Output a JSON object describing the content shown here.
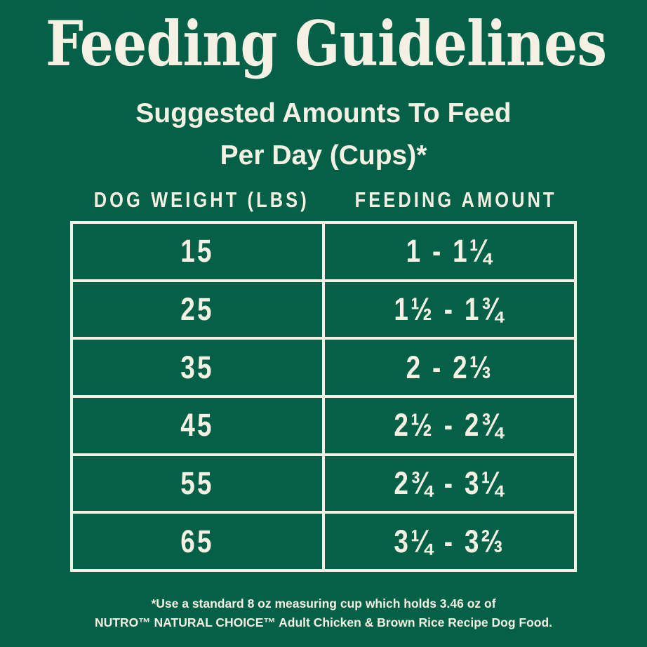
{
  "colors": {
    "background_green": "#046147",
    "text_cream": "#F4F0E3"
  },
  "page": {
    "title": "Feeding Guidelines",
    "subtitle_line1": "Suggested Amounts To Feed",
    "subtitle_line2": "Per Day (Cups)*"
  },
  "table": {
    "columns": [
      "DOG WEIGHT (LBS)",
      "FEEDING AMOUNT"
    ],
    "rows": [
      {
        "weight": "15",
        "amount": "1 - 1¼"
      },
      {
        "weight": "25",
        "amount": "1½ - 1¾"
      },
      {
        "weight": "35",
        "amount": "2 - 2⅓"
      },
      {
        "weight": "45",
        "amount": "2½ - 2¾"
      },
      {
        "weight": "55",
        "amount": "2¾ - 3¼"
      },
      {
        "weight": "65",
        "amount": "3¼ - 3⅔"
      }
    ]
  },
  "footnote": {
    "line1": "*Use a standard 8 oz measuring cup which holds 3.46 oz of",
    "line2": "NUTRO™ NATURAL CHOICE™ Adult Chicken & Brown Rice Recipe Dog Food."
  },
  "chart_data": {
    "type": "table",
    "title": "Feeding Guidelines",
    "subtitle": "Suggested Amounts To Feed Per Day (Cups)*",
    "columns": [
      "Dog Weight (lbs)",
      "Feeding Amount (cups per day)"
    ],
    "rows": [
      {
        "weight_lbs": 15,
        "cups_min": 1.0,
        "cups_max": 1.25,
        "display": "1 - 1¼"
      },
      {
        "weight_lbs": 25,
        "cups_min": 1.5,
        "cups_max": 1.75,
        "display": "1½ - 1¾"
      },
      {
        "weight_lbs": 35,
        "cups_min": 2.0,
        "cups_max": 2.333,
        "display": "2 - 2⅓"
      },
      {
        "weight_lbs": 45,
        "cups_min": 2.5,
        "cups_max": 2.75,
        "display": "2½ - 2¾"
      },
      {
        "weight_lbs": 55,
        "cups_min": 2.75,
        "cups_max": 3.25,
        "display": "2¾ - 3¼"
      },
      {
        "weight_lbs": 65,
        "cups_min": 3.25,
        "cups_max": 3.667,
        "display": "3¼ - 3⅔"
      }
    ],
    "footnote": "*Use a standard 8 oz measuring cup which holds 3.46 oz of NUTRO™ NATURAL CHOICE™ Adult Chicken & Brown Rice Recipe Dog Food."
  }
}
